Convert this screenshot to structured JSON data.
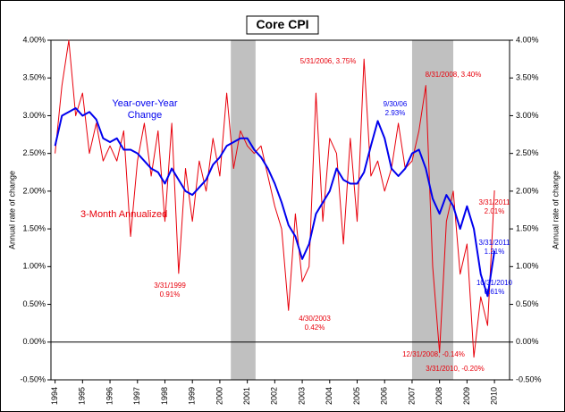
{
  "chart_data": {
    "type": "line",
    "title": "Core CPI",
    "y_label": "Annual rate of change",
    "y2_label": "Annual rate of change",
    "x": [
      1994.0,
      1994.25,
      1994.5,
      1994.75,
      1995.0,
      1995.25,
      1995.5,
      1995.75,
      1996.0,
      1996.25,
      1996.5,
      1996.75,
      1997.0,
      1997.25,
      1997.5,
      1997.75,
      1998.0,
      1998.25,
      1998.5,
      1998.75,
      1999.0,
      1999.25,
      1999.5,
      1999.75,
      2000.0,
      2000.25,
      2000.5,
      2000.75,
      2001.0,
      2001.25,
      2001.5,
      2001.75,
      2002.0,
      2002.25,
      2002.5,
      2002.75,
      2003.0,
      2003.25,
      2003.5,
      2003.75,
      2004.0,
      2004.25,
      2004.5,
      2004.75,
      2005.0,
      2005.25,
      2005.5,
      2005.75,
      2006.0,
      2006.25,
      2006.5,
      2006.75,
      2007.0,
      2007.25,
      2007.5,
      2007.75,
      2008.0,
      2008.25,
      2008.5,
      2008.75,
      2009.0,
      2009.25,
      2009.5,
      2009.75,
      2010.0
    ],
    "series": [
      {
        "name": "3-Month Annualized",
        "color": "#e8000b",
        "width": 1,
        "values": [
          2.5,
          3.4,
          4.0,
          3.0,
          3.3,
          2.5,
          2.9,
          2.4,
          2.6,
          2.4,
          2.8,
          1.4,
          2.4,
          2.9,
          2.2,
          2.8,
          1.6,
          2.9,
          0.91,
          2.3,
          1.6,
          2.4,
          2.0,
          2.7,
          2.2,
          3.3,
          2.3,
          2.8,
          2.6,
          2.5,
          2.6,
          2.2,
          1.8,
          1.5,
          0.42,
          1.7,
          0.8,
          1.0,
          3.3,
          1.6,
          2.7,
          2.5,
          1.3,
          2.7,
          1.6,
          3.75,
          2.2,
          2.4,
          2.0,
          2.3,
          2.9,
          2.3,
          2.4,
          2.8,
          3.4,
          1.0,
          -0.14,
          1.6,
          2.0,
          0.9,
          1.3,
          -0.2,
          0.6,
          0.22,
          2.01
        ]
      },
      {
        "name": "Year-over-Year Change",
        "color": "#0000ee",
        "width": 2,
        "values": [
          2.6,
          3.0,
          3.05,
          3.1,
          3.0,
          3.05,
          2.95,
          2.7,
          2.65,
          2.7,
          2.55,
          2.55,
          2.5,
          2.4,
          2.3,
          2.25,
          2.1,
          2.3,
          2.15,
          2.0,
          1.95,
          2.05,
          2.15,
          2.35,
          2.45,
          2.6,
          2.65,
          2.7,
          2.7,
          2.55,
          2.45,
          2.3,
          2.1,
          1.85,
          1.55,
          1.4,
          1.1,
          1.3,
          1.7,
          1.85,
          2.0,
          2.3,
          2.15,
          2.1,
          2.1,
          2.25,
          2.6,
          2.93,
          2.7,
          2.3,
          2.2,
          2.3,
          2.5,
          2.55,
          2.3,
          1.9,
          1.7,
          1.95,
          1.8,
          1.5,
          1.8,
          1.5,
          0.9,
          0.61,
          1.21
        ]
      }
    ],
    "shaded_regions": [
      [
        2000.4,
        2001.3
      ],
      [
        2007.0,
        2008.5
      ]
    ],
    "shade_color": "#c0c0c0",
    "xlim": [
      1993.85,
      2010.55
    ],
    "xticks": [
      1994,
      1995,
      1996,
      1997,
      1998,
      1999,
      2000,
      2001,
      2002,
      2003,
      2004,
      2005,
      2006,
      2007,
      2008,
      2009,
      2010
    ],
    "ylim": [
      -0.5,
      4.0
    ],
    "yticks": [
      {
        "value": -0.5,
        "label": "-0.50%"
      },
      {
        "value": 0,
        "label": "0.00%"
      },
      {
        "value": 0.5,
        "label": "0.50%"
      },
      {
        "value": 1.0,
        "label": "1.00%"
      },
      {
        "value": 1.5,
        "label": "1.50%"
      },
      {
        "value": 2.0,
        "label": "2.00%"
      },
      {
        "value": 2.5,
        "label": "2.50%"
      },
      {
        "value": 3.0,
        "label": "3.00%"
      },
      {
        "value": 3.5,
        "label": "3.50%"
      },
      {
        "value": 4.0,
        "label": "4.00%"
      }
    ],
    "y2lim": [
      -0.5,
      4.0
    ],
    "y2ticks": [
      {
        "value": -0.5,
        "label": "-0.50%"
      },
      {
        "value": 0,
        "label": "0.00%"
      },
      {
        "value": 0.5,
        "label": "0.50%"
      },
      {
        "value": 1.0,
        "label": "1.00%"
      },
      {
        "value": 1.5,
        "label": "1.50%"
      },
      {
        "value": 2.0,
        "label": "2.00%"
      },
      {
        "value": 2.5,
        "label": "2.50%"
      },
      {
        "value": 3.0,
        "label": "3.00%"
      },
      {
        "value": 3.5,
        "label": "3.50%"
      },
      {
        "value": 4.0,
        "label": "4.00%"
      }
    ],
    "annotations": [
      {
        "lines": [
          "Year-over-Year",
          "Change"
        ],
        "color": "#0000ee"
      },
      {
        "lines": [
          "3-Month Annualized"
        ],
        "color": "#e8000b"
      },
      {
        "lines": [
          "3/31/1999",
          "0.91%"
        ],
        "color": "#e8000b"
      },
      {
        "lines": [
          "4/30/2003",
          "0.42%"
        ],
        "color": "#e8000b"
      },
      {
        "lines": [
          "5/31/2006, 3.75%"
        ],
        "color": "#e8000b"
      },
      {
        "lines": [
          "8/31/2008, 3.40%"
        ],
        "color": "#e8000b"
      },
      {
        "lines": [
          "9/30/06",
          "2.93%"
        ],
        "color": "#0000ee"
      },
      {
        "lines": [
          "3/31/2011",
          "2.01%"
        ],
        "color": "#e8000b"
      },
      {
        "lines": [
          "3/31/2011",
          "1.21%"
        ],
        "color": "#0000ee"
      },
      {
        "lines": [
          "10/31/2010",
          "0.61%"
        ],
        "color": "#0000ee"
      },
      {
        "lines": [
          "12/31/2008, -0.14%"
        ],
        "color": "#e8000b"
      },
      {
        "lines": [
          "3/31/2010, -0.20%"
        ],
        "color": "#e8000b"
      }
    ]
  }
}
